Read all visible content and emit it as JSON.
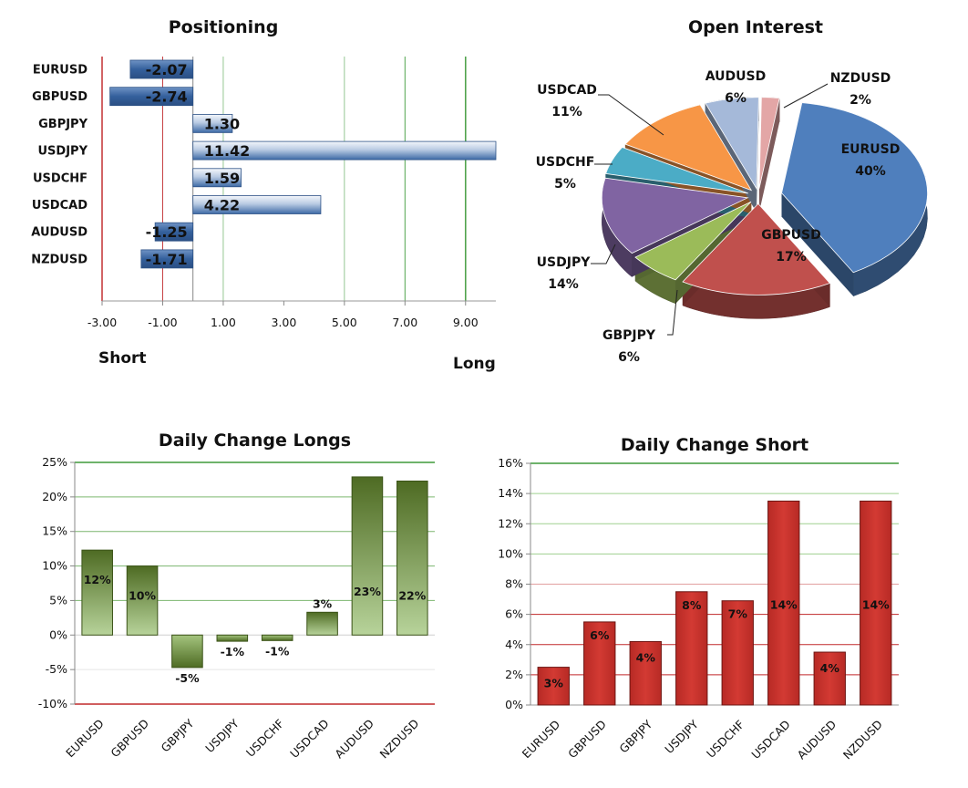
{
  "charts": {
    "positioning": {
      "type": "bar",
      "title": "Positioning",
      "categories": [
        "EURUSD",
        "GBPUSD",
        "GBPJPY",
        "USDJPY",
        "USDCHF",
        "USDCAD",
        "AUDUSD",
        "NZDUSD"
      ],
      "values": [
        -2.07,
        -2.74,
        1.3,
        11.42,
        1.59,
        4.22,
        -1.25,
        -1.71
      ],
      "value_labels": [
        "-2.07",
        "-2.74",
        "1.30",
        "11.42",
        "1.59",
        "4.22",
        "-1.25",
        "-1.71"
      ],
      "xticks": [
        "-3.00",
        "-1.00",
        "1.00",
        "3.00",
        "5.00",
        "7.00",
        "9.00"
      ],
      "xlim": [
        -3.0,
        10.0
      ],
      "short_label": "Short",
      "long_label": "Long",
      "colors": {
        "bar": "#3d6aa6",
        "red_line": "#c0282a",
        "green_line": "#3f9a3a"
      }
    },
    "open_interest": {
      "type": "pie",
      "title": "Open Interest",
      "slices": [
        {
          "name": "EURUSD",
          "value": 40,
          "label": "40%",
          "color": "#4f7fbd"
        },
        {
          "name": "GBPUSD",
          "value": 17,
          "label": "17%",
          "color": "#c0504d"
        },
        {
          "name": "GBPJPY",
          "value": 6,
          "label": "6%",
          "color": "#9bbb59"
        },
        {
          "name": "USDJPY",
          "value": 14,
          "label": "14%",
          "color": "#8064a2"
        },
        {
          "name": "USDCHF",
          "value": 5,
          "label": "5%",
          "color": "#4bacc6"
        },
        {
          "name": "USDCAD",
          "value": 11,
          "label": "11%",
          "color": "#f79646"
        },
        {
          "name": "AUDUSD",
          "value": 6,
          "label": "6%",
          "color": "#a5b9d9"
        },
        {
          "name": "NZDUSD",
          "value": 2,
          "label": "2%",
          "color": "#e3a6a6"
        }
      ]
    },
    "daily_longs": {
      "type": "bar",
      "title": "Daily Change Longs",
      "categories": [
        "EURUSD",
        "GBPUSD",
        "GBPJPY",
        "USDJPY",
        "USDCHF",
        "USDCAD",
        "AUDUSD",
        "NZDUSD"
      ],
      "values": [
        12.3,
        10.0,
        -4.7,
        -0.9,
        -0.8,
        3.3,
        22.9,
        22.3
      ],
      "value_labels": [
        "12%",
        "10%",
        "-5%",
        "-1%",
        "-1%",
        "3%",
        "23%",
        "22%"
      ],
      "ylim": [
        -10,
        25
      ],
      "yticks": [
        "-10%",
        "-5%",
        "0%",
        "5%",
        "10%",
        "15%",
        "20%",
        "25%"
      ],
      "colors": {
        "bar_top": "#4e6b23",
        "bar_bottom": "#b7d39a"
      }
    },
    "daily_short": {
      "type": "bar",
      "title": "Daily Change Short",
      "categories": [
        "EURUSD",
        "GBPUSD",
        "GBPJPY",
        "USDJPY",
        "USDCHF",
        "USDCAD",
        "AUDUSD",
        "NZDUSD"
      ],
      "values": [
        2.5,
        5.5,
        4.2,
        7.5,
        6.9,
        13.5,
        3.5,
        13.5
      ],
      "value_labels": [
        "3%",
        "6%",
        "4%",
        "8%",
        "7%",
        "14%",
        "4%",
        "14%"
      ],
      "ylim": [
        0,
        16
      ],
      "yticks": [
        "0%",
        "2%",
        "4%",
        "6%",
        "8%",
        "10%",
        "12%",
        "14%",
        "16%"
      ],
      "colors": {
        "bar": "#d33a33"
      }
    }
  }
}
